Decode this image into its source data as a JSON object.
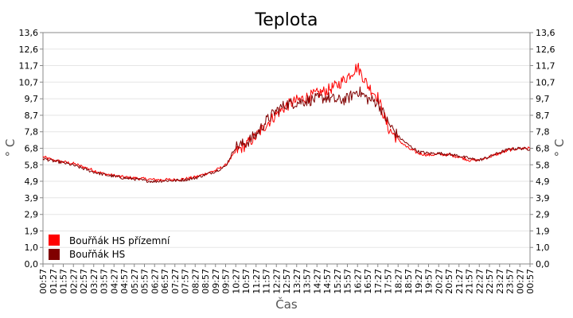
{
  "chart_data": {
    "type": "line",
    "title": "Teplota",
    "xlabel": "Čas",
    "ylabel": "° C",
    "ylabel_right": "° C",
    "ylim": [
      0,
      13.6
    ],
    "yticks": [
      "0,0",
      "1,0",
      "1,9",
      "2,9",
      "3,9",
      "4,9",
      "5,8",
      "6,8",
      "7,8",
      "8,7",
      "9,7",
      "10,7",
      "11,7",
      "12,6",
      "13,6"
    ],
    "ytick_values": [
      0,
      0.97,
      1.94,
      2.91,
      3.89,
      4.86,
      5.83,
      6.8,
      7.77,
      8.74,
      9.71,
      10.69,
      11.66,
      12.63,
      13.6
    ],
    "x": [
      "00:57",
      "01:27",
      "01:57",
      "02:27",
      "02:57",
      "03:27",
      "03:57",
      "04:27",
      "04:57",
      "05:27",
      "05:57",
      "06:27",
      "06:57",
      "07:27",
      "07:57",
      "08:27",
      "08:57",
      "09:27",
      "09:57",
      "10:27",
      "10:57",
      "11:27",
      "11:57",
      "12:27",
      "12:57",
      "13:27",
      "13:57",
      "14:27",
      "14:57",
      "15:27",
      "15:57",
      "16:27",
      "16:57",
      "17:27",
      "17:57",
      "18:27",
      "18:57",
      "19:27",
      "19:57",
      "20:27",
      "20:57",
      "21:27",
      "21:57",
      "22:27",
      "22:57",
      "23:27",
      "23:57",
      "00:27",
      "00:57"
    ],
    "grid": true,
    "legend_position": "bottom-left",
    "series": [
      {
        "name": "Bouřňák HS přízemní",
        "color": "#ff0000",
        "values": [
          6.3,
          6.1,
          6.0,
          5.9,
          5.7,
          5.5,
          5.3,
          5.2,
          5.1,
          5.05,
          5.0,
          4.95,
          4.95,
          4.95,
          5.0,
          5.1,
          5.3,
          5.5,
          5.8,
          6.6,
          7.0,
          7.5,
          8.2,
          8.8,
          9.3,
          9.6,
          9.8,
          10.0,
          10.2,
          10.5,
          11.0,
          11.6,
          10.5,
          9.8,
          8.0,
          7.3,
          6.8,
          6.5,
          6.4,
          6.45,
          6.4,
          6.3,
          6.1,
          6.1,
          6.3,
          6.5,
          6.7,
          6.8,
          6.8
        ]
      },
      {
        "name": "Bouřňák HS",
        "color": "#800000",
        "values": [
          6.2,
          6.05,
          5.95,
          5.8,
          5.6,
          5.4,
          5.25,
          5.15,
          5.05,
          5.0,
          4.9,
          4.85,
          4.9,
          4.9,
          4.95,
          5.05,
          5.25,
          5.45,
          5.75,
          6.9,
          7.1,
          7.6,
          8.4,
          9.0,
          9.4,
          9.5,
          9.6,
          9.7,
          9.8,
          9.6,
          9.7,
          10.2,
          9.7,
          9.5,
          8.3,
          7.5,
          7.0,
          6.6,
          6.5,
          6.5,
          6.45,
          6.35,
          6.2,
          6.1,
          6.3,
          6.55,
          6.75,
          6.8,
          6.75
        ]
      }
    ]
  }
}
